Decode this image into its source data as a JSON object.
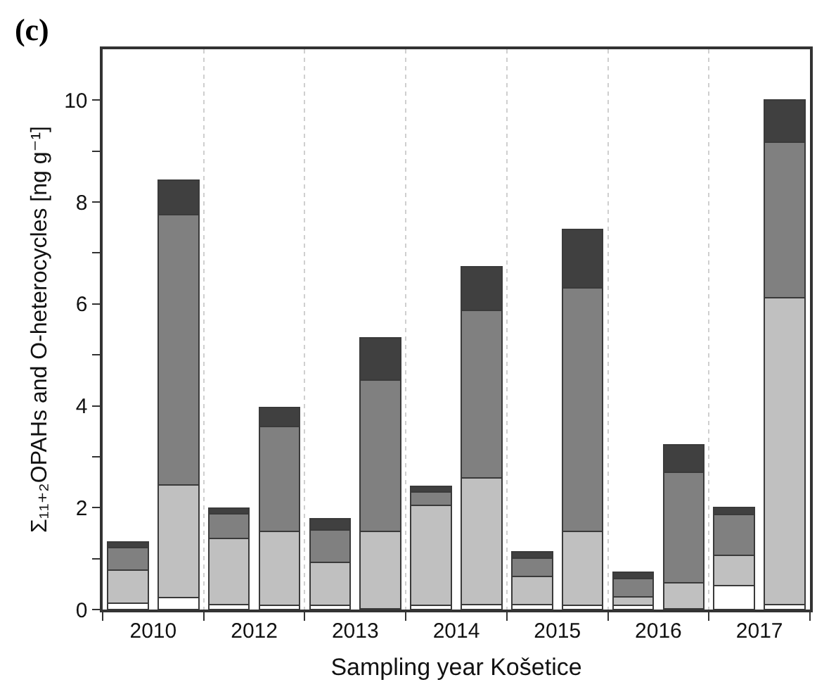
{
  "chart_data": {
    "type": "bar",
    "title": "(c)",
    "xlabel": "Sampling year Košetice",
    "ylabel": "Σ₁₁₊₂OPAHs and O-heterocycles [ng g⁻¹]",
    "categories": [
      "2010",
      null,
      "2012",
      null,
      "2013",
      null,
      "2014",
      null,
      "2015",
      null,
      "2016",
      null,
      "2017",
      null
    ],
    "stacked": true,
    "series": [
      {
        "color": "#ffffff",
        "values": [
          0.13,
          0.24,
          0.1,
          0.08,
          0.08,
          0.02,
          0.08,
          0.1,
          0.1,
          0.08,
          0.08,
          0.02,
          0.47,
          0.1
        ]
      },
      {
        "color": "#c0c0c0",
        "values": [
          0.65,
          2.21,
          1.3,
          1.45,
          0.85,
          1.51,
          1.96,
          2.49,
          0.55,
          1.45,
          0.17,
          0.5,
          0.6,
          6.02
        ]
      },
      {
        "color": "#808080",
        "values": [
          0.44,
          5.3,
          0.48,
          2.07,
          0.63,
          2.98,
          0.27,
          3.29,
          0.36,
          4.79,
          0.36,
          2.17,
          0.79,
          3.06
        ]
      },
      {
        "color": "#404040",
        "values": [
          0.11,
          0.68,
          0.11,
          0.37,
          0.22,
          0.83,
          0.11,
          0.85,
          0.12,
          1.14,
          0.12,
          0.55,
          0.14,
          0.82
        ]
      }
    ],
    "ylim": [
      0,
      11
    ],
    "yticks": [
      0,
      {
        "value": 1,
        "label": null
      },
      2,
      {
        "value": 3,
        "label": null
      },
      4,
      {
        "value": 5,
        "label": null
      },
      6,
      {
        "value": 7,
        "label": null
      },
      8,
      {
        "value": 9,
        "label": null
      },
      10
    ],
    "grid": "x"
  }
}
